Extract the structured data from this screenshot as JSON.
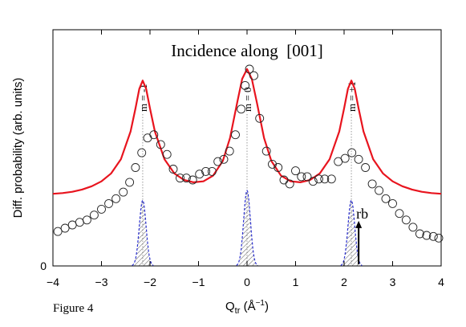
{
  "chart_data": {
    "type": "line",
    "title": "Incidence along  [001]",
    "ylabel": "Diff. probability (arb. units)",
    "xlabel_main": "Q",
    "xlabel_sub": "tr",
    "xlabel_unit_open": " (Å",
    "xlabel_unit_exp": "−1",
    "xlabel_unit_close": ")",
    "xlim": [
      -4,
      4
    ],
    "x_ticks": [
      -4,
      -3,
      -2,
      -1,
      0,
      1,
      2,
      3,
      4
    ],
    "x_tick_labels": [
      "−4",
      "−3",
      "−2",
      "−1",
      "0",
      "1",
      "2",
      "3",
      "4"
    ],
    "y_tick_label": "0",
    "grid": false,
    "colors": {
      "curve": "#e8141e",
      "peak_fill": "#2a2fd0",
      "guide": "#9a9a9a",
      "axis": "#000000"
    },
    "order_lines": [
      {
        "x": -2.15,
        "label": "m = -1"
      },
      {
        "x": 0.0,
        "label": "m = 0"
      },
      {
        "x": 2.15,
        "label": "m = +1"
      }
    ],
    "series": [
      {
        "kind": "curve",
        "points": [
          [
            -4.0,
            0.22
          ],
          [
            -3.8,
            0.222
          ],
          [
            -3.6,
            0.226
          ],
          [
            -3.4,
            0.233
          ],
          [
            -3.2,
            0.243
          ],
          [
            -3.0,
            0.258
          ],
          [
            -2.8,
            0.282
          ],
          [
            -2.6,
            0.325
          ],
          [
            -2.4,
            0.41
          ],
          [
            -2.3,
            0.48
          ],
          [
            -2.22,
            0.54
          ],
          [
            -2.15,
            0.565
          ],
          [
            -2.08,
            0.54
          ],
          [
            -2.0,
            0.48
          ],
          [
            -1.9,
            0.41
          ],
          [
            -1.7,
            0.325
          ],
          [
            -1.5,
            0.282
          ],
          [
            -1.3,
            0.262
          ],
          [
            -1.1,
            0.255
          ],
          [
            -0.9,
            0.258
          ],
          [
            -0.7,
            0.275
          ],
          [
            -0.5,
            0.32
          ],
          [
            -0.35,
            0.39
          ],
          [
            -0.2,
            0.5
          ],
          [
            -0.1,
            0.57
          ],
          [
            0.0,
            0.6
          ],
          [
            0.1,
            0.57
          ],
          [
            0.2,
            0.5
          ],
          [
            0.35,
            0.39
          ],
          [
            0.5,
            0.32
          ],
          [
            0.7,
            0.275
          ],
          [
            0.9,
            0.258
          ],
          [
            1.1,
            0.255
          ],
          [
            1.3,
            0.262
          ],
          [
            1.5,
            0.282
          ],
          [
            1.7,
            0.325
          ],
          [
            1.9,
            0.41
          ],
          [
            2.0,
            0.48
          ],
          [
            2.08,
            0.54
          ],
          [
            2.15,
            0.565
          ],
          [
            2.22,
            0.54
          ],
          [
            2.3,
            0.48
          ],
          [
            2.4,
            0.41
          ],
          [
            2.6,
            0.325
          ],
          [
            2.8,
            0.282
          ],
          [
            3.0,
            0.258
          ],
          [
            3.2,
            0.243
          ],
          [
            3.4,
            0.233
          ],
          [
            3.6,
            0.226
          ],
          [
            3.8,
            0.222
          ],
          [
            4.0,
            0.22
          ]
        ]
      },
      {
        "kind": "points",
        "points": [
          [
            -3.9,
            0.105
          ],
          [
            -3.75,
            0.115
          ],
          [
            -3.6,
            0.125
          ],
          [
            -3.45,
            0.133
          ],
          [
            -3.3,
            0.14
          ],
          [
            -3.15,
            0.155
          ],
          [
            -3.0,
            0.173
          ],
          [
            -2.85,
            0.19
          ],
          [
            -2.7,
            0.205
          ],
          [
            -2.55,
            0.225
          ],
          [
            -2.42,
            0.255
          ],
          [
            -2.3,
            0.3
          ],
          [
            -2.17,
            0.345
          ],
          [
            -2.05,
            0.39
          ],
          [
            -1.92,
            0.4
          ],
          [
            -1.78,
            0.37
          ],
          [
            -1.65,
            0.34
          ],
          [
            -1.52,
            0.295
          ],
          [
            -1.38,
            0.268
          ],
          [
            -1.25,
            0.268
          ],
          [
            -1.12,
            0.262
          ],
          [
            -0.98,
            0.28
          ],
          [
            -0.85,
            0.288
          ],
          [
            -0.72,
            0.288
          ],
          [
            -0.6,
            0.318
          ],
          [
            -0.48,
            0.325
          ],
          [
            -0.36,
            0.35
          ],
          [
            -0.24,
            0.4
          ],
          [
            -0.12,
            0.478
          ],
          [
            -0.04,
            0.55
          ],
          [
            0.05,
            0.6
          ],
          [
            0.14,
            0.58
          ],
          [
            0.26,
            0.45
          ],
          [
            0.4,
            0.35
          ],
          [
            0.52,
            0.31
          ],
          [
            0.64,
            0.3
          ],
          [
            0.76,
            0.262
          ],
          [
            0.88,
            0.25
          ],
          [
            1.0,
            0.29
          ],
          [
            1.12,
            0.272
          ],
          [
            1.24,
            0.272
          ],
          [
            1.36,
            0.258
          ],
          [
            1.48,
            0.265
          ],
          [
            1.6,
            0.265
          ],
          [
            1.74,
            0.265
          ],
          [
            1.88,
            0.318
          ],
          [
            2.02,
            0.328
          ],
          [
            2.16,
            0.345
          ],
          [
            2.3,
            0.325
          ],
          [
            2.44,
            0.3
          ],
          [
            2.58,
            0.25
          ],
          [
            2.72,
            0.23
          ],
          [
            2.86,
            0.205
          ],
          [
            3.0,
            0.19
          ],
          [
            3.14,
            0.16
          ],
          [
            3.28,
            0.14
          ],
          [
            3.42,
            0.118
          ],
          [
            3.56,
            0.098
          ],
          [
            3.7,
            0.093
          ],
          [
            3.84,
            0.09
          ],
          [
            3.95,
            0.085
          ]
        ]
      },
      {
        "kind": "hatched_peaks",
        "peaks": [
          {
            "center": -2.15,
            "height": 0.2,
            "half_width": 0.22
          },
          {
            "center": 0.0,
            "height": 0.23,
            "half_width": 0.22
          },
          {
            "center": 2.15,
            "height": 0.2,
            "half_width": 0.22
          }
        ]
      }
    ],
    "annotations": [
      {
        "text": "rb",
        "x": 2.3,
        "y": 0.135
      }
    ]
  },
  "figure_caption": "Figure 4"
}
